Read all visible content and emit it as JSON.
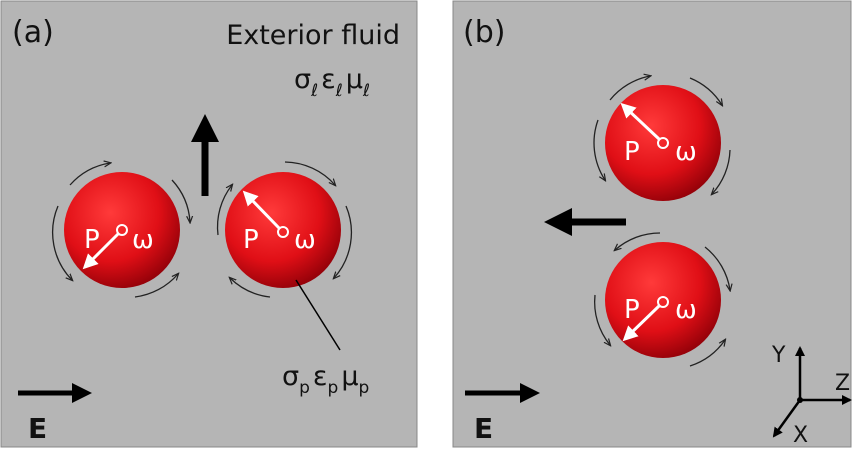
{
  "panel_a": {
    "label": "(a)",
    "fluid_label": "Exterior fluid",
    "fluid_symbols": [
      [
        "σ",
        "ℓ"
      ],
      [
        "ε",
        "ℓ"
      ],
      [
        "μ",
        "ℓ"
      ]
    ],
    "particle_symbols": [
      [
        "σ",
        "p"
      ],
      [
        "ε",
        "p"
      ],
      [
        "μ",
        "p"
      ]
    ],
    "spheres": [
      {
        "moment": "P",
        "rotation": "ω"
      },
      {
        "moment": "P",
        "rotation": "ω"
      }
    ],
    "field_label": "E"
  },
  "panel_b": {
    "label": "(b)",
    "spheres": [
      {
        "moment": "P",
        "rotation": "ω"
      },
      {
        "moment": "P",
        "rotation": "ω"
      }
    ],
    "field_label": "E",
    "axes": {
      "y": "Y",
      "z": "Z",
      "x": "X"
    }
  }
}
